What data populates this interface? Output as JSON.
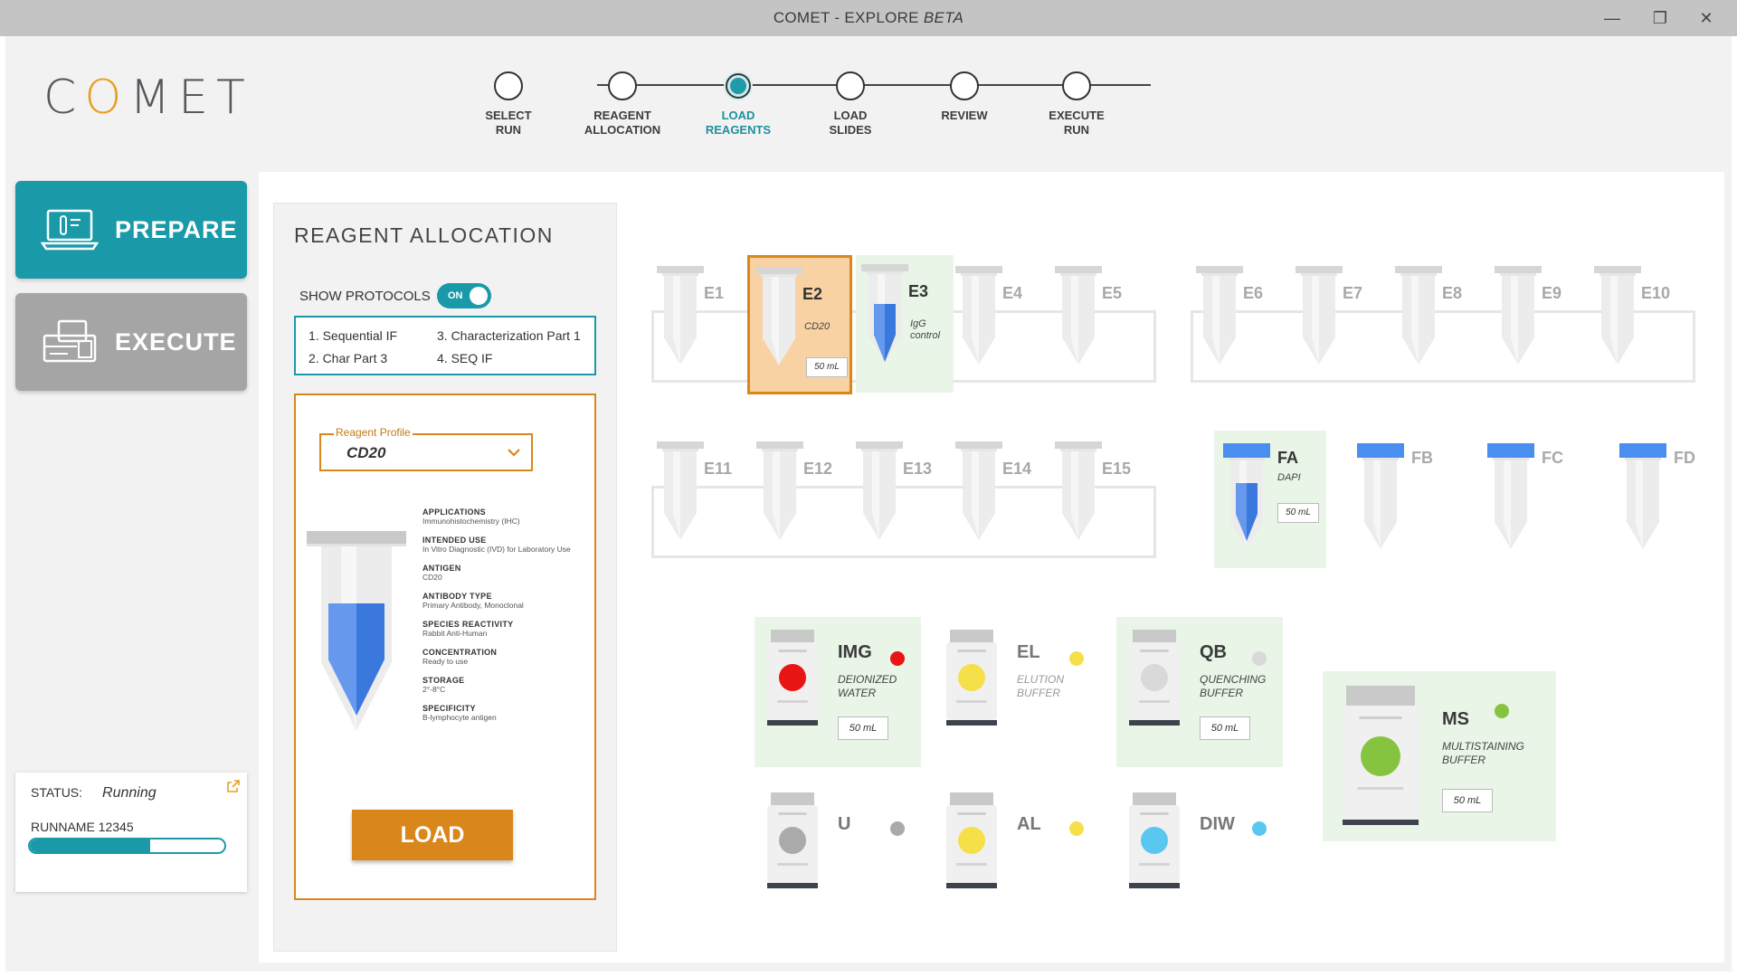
{
  "window": {
    "title_main": "COMET - EXPLORE",
    "title_suffix": "BETA",
    "minimize": "—",
    "restore": "❐",
    "close": "✕"
  },
  "logo": {
    "c": "C",
    "o": "O",
    "rest": "MET"
  },
  "stepper": {
    "steps": [
      {
        "label": "SELECT\nRUN",
        "active": false
      },
      {
        "label": "REAGENT\nALLOCATION",
        "active": false
      },
      {
        "label": "LOAD\nREAGENTS",
        "active": true
      },
      {
        "label": "LOAD\nSLIDES",
        "active": false
      },
      {
        "label": "REVIEW",
        "active": false
      },
      {
        "label": "EXECUTE\nRUN",
        "active": false
      }
    ]
  },
  "nav": {
    "prepare": "PREPARE",
    "execute": "EXECUTE"
  },
  "status": {
    "label": "STATUS:",
    "value": "Running",
    "runname": "RUNNAME 12345",
    "progress": 0.62
  },
  "allocation": {
    "heading": "REAGENT ALLOCATION",
    "show_protocols": "SHOW PROTOCOLS",
    "toggle": "ON",
    "protocols": [
      "1. Sequential IF",
      "2. Char Part 3",
      "3. Characterization Part 1",
      "4. SEQ IF"
    ],
    "profile_label": "Reagent Profile",
    "profile_value": "CD20",
    "specs": [
      {
        "k": "APPLICATIONS",
        "v": "Immunohistochemistry (IHC)"
      },
      {
        "k": "INTENDED USE",
        "v": "In Vitro Diagnostic (IVD) for Laboratory Use"
      },
      {
        "k": "ANTIGEN",
        "v": "CD20"
      },
      {
        "k": "ANTIBODY TYPE",
        "v": "Primary Antibody, Monoclonal"
      },
      {
        "k": "SPECIES REACTIVITY",
        "v": "Rabbit Anti-Human"
      },
      {
        "k": "CONCENTRATION",
        "v": "Ready to use"
      },
      {
        "k": "STORAGE",
        "v": "2°-8°C"
      },
      {
        "k": "SPECIFICITY",
        "v": "B-lymphocyte antigen"
      }
    ],
    "load_button": "LOAD"
  },
  "tubes_row1": [
    {
      "name": "E1"
    },
    {
      "name": "E2",
      "sub": "CD20",
      "vol": "50 mL",
      "state": "selected"
    },
    {
      "name": "E3",
      "sub": "IgG control",
      "state": "filled"
    },
    {
      "name": "E4"
    },
    {
      "name": "E5"
    },
    {
      "name": "E6"
    },
    {
      "name": "E7"
    },
    {
      "name": "E8"
    },
    {
      "name": "E9"
    },
    {
      "name": "E10"
    }
  ],
  "tubes_row2": [
    {
      "name": "E11"
    },
    {
      "name": "E12"
    },
    {
      "name": "E13"
    },
    {
      "name": "E14"
    },
    {
      "name": "E15"
    }
  ],
  "tubes_f": [
    {
      "name": "FA",
      "sub": "DAPI",
      "vol": "50 mL",
      "state": "filled"
    },
    {
      "name": "FB"
    },
    {
      "name": "FC"
    },
    {
      "name": "FD"
    }
  ],
  "bottles": [
    {
      "name": "IMG",
      "sub": "DEIONIZED WATER",
      "vol": "50 mL",
      "color": "#e81515",
      "state": "filled"
    },
    {
      "name": "EL",
      "sub": "ELUTION BUFFER",
      "color": "#f5e04a",
      "state": "empty"
    },
    {
      "name": "QB",
      "sub": "QUENCHING BUFFER",
      "vol": "50 mL",
      "color": "#d9d9d9",
      "state": "filled"
    },
    {
      "name": "U",
      "sub": "",
      "color": "#aaaaaa",
      "state": "empty"
    },
    {
      "name": "AL",
      "sub": "",
      "color": "#f5e04a",
      "state": "empty"
    },
    {
      "name": "DIW",
      "sub": "",
      "color": "#5ac8ee",
      "state": "empty"
    },
    {
      "name": "MS",
      "sub": "MULTISTAINING BUFFER",
      "vol": "50 mL",
      "color": "#86c440",
      "state": "filled"
    }
  ]
}
